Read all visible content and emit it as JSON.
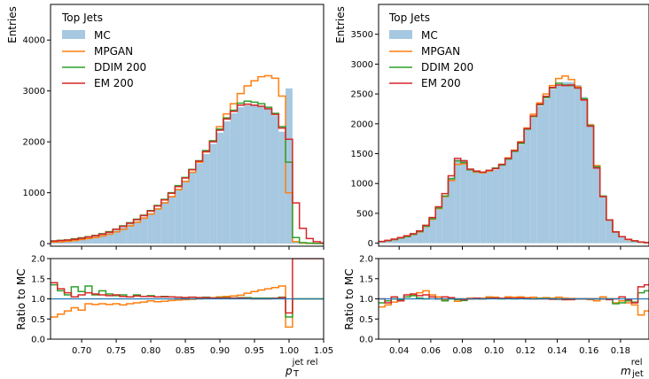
{
  "colors": {
    "mc": "#a6c8e0",
    "mpgan": "#ff7f0e",
    "ddim": "#2ca02c",
    "em": "#d62728",
    "ratio_line": "#1f77b4"
  },
  "chart_data": [
    {
      "type": "histogram",
      "legend_title": "Top Jets",
      "legend_position": "top-left",
      "legend": [
        "MC",
        "MPGAN",
        "DDIM 200",
        "EM 200"
      ],
      "ylabel": "Entries",
      "xlabel_main": "p",
      "xlabel_sub": "T",
      "xlabel_sup": "jet rel",
      "ratio_ylabel": "Ratio to MC",
      "xlim": [
        0.655,
        1.05
      ],
      "ylim": [
        -50,
        4700
      ],
      "ratio_ylim": [
        0.0,
        2.0
      ],
      "xticks": [
        "0.70",
        "0.75",
        "0.80",
        "0.85",
        "0.90",
        "0.95",
        "1.00",
        "1.05"
      ],
      "yticks": [
        "0",
        "1000",
        "2000",
        "3000",
        "4000"
      ],
      "ratio_yticks": [
        "0.0",
        "0.5",
        "1.0",
        "1.5",
        "2.0"
      ],
      "bin_edges": [
        0.655,
        0.665,
        0.675,
        0.685,
        0.695,
        0.705,
        0.715,
        0.725,
        0.735,
        0.745,
        0.755,
        0.765,
        0.775,
        0.785,
        0.795,
        0.805,
        0.815,
        0.825,
        0.835,
        0.845,
        0.855,
        0.865,
        0.875,
        0.885,
        0.895,
        0.905,
        0.915,
        0.925,
        0.935,
        0.945,
        0.955,
        0.965,
        0.975,
        0.985,
        0.995,
        1.005,
        1.015,
        1.025,
        1.035,
        1.045,
        1.05
      ],
      "series": [
        {
          "name": "MC",
          "values": [
            40,
            50,
            60,
            75,
            95,
            115,
            140,
            170,
            210,
            260,
            320,
            380,
            440,
            520,
            600,
            700,
            820,
            940,
            1080,
            1240,
            1400,
            1580,
            1760,
            1960,
            2180,
            2400,
            2560,
            2680,
            2720,
            2720,
            2700,
            2640,
            2520,
            2200,
            3050,
            40,
            10,
            5,
            5,
            5
          ]
        },
        {
          "name": "MPGAN",
          "values": [
            30,
            35,
            45,
            60,
            80,
            100,
            120,
            150,
            185,
            230,
            280,
            350,
            420,
            500,
            580,
            680,
            800,
            920,
            1060,
            1220,
            1400,
            1600,
            1800,
            2020,
            2300,
            2550,
            2750,
            2950,
            3100,
            3200,
            3280,
            3300,
            3250,
            2900,
            1000,
            40,
            10,
            5,
            5,
            5
          ]
        },
        {
          "name": "DDIM 200",
          "values": [
            55,
            65,
            75,
            95,
            115,
            135,
            160,
            195,
            235,
            285,
            350,
            410,
            480,
            560,
            650,
            750,
            870,
            1000,
            1140,
            1300,
            1460,
            1630,
            1830,
            2020,
            2250,
            2470,
            2620,
            2760,
            2800,
            2780,
            2750,
            2680,
            2560,
            2300,
            1600,
            120,
            20,
            10,
            5,
            5
          ]
        },
        {
          "name": "EM 200",
          "values": [
            50,
            60,
            70,
            85,
            105,
            130,
            155,
            185,
            225,
            280,
            340,
            400,
            470,
            550,
            640,
            740,
            860,
            990,
            1120,
            1290,
            1450,
            1620,
            1810,
            2000,
            2230,
            2450,
            2600,
            2720,
            2740,
            2720,
            2700,
            2650,
            2540,
            2270,
            2050,
            800,
            300,
            100,
            40,
            15
          ]
        }
      ],
      "ratio_series": [
        {
          "name": "MPGAN",
          "values": [
            0.55,
            0.62,
            0.7,
            0.78,
            0.72,
            0.88,
            0.86,
            0.88,
            0.86,
            0.88,
            0.85,
            0.88,
            0.9,
            0.92,
            0.95,
            0.93,
            0.94,
            0.96,
            0.97,
            0.98,
            0.99,
            1.0,
            1.02,
            1.03,
            1.05,
            1.06,
            1.07,
            1.09,
            1.14,
            1.18,
            1.22,
            1.25,
            1.28,
            1.32,
            0.3,
            1.0,
            1.0,
            1.0,
            1.0,
            1.0
          ]
        },
        {
          "name": "DDIM 200",
          "values": [
            1.35,
            1.2,
            1.1,
            1.3,
            1.18,
            1.32,
            1.1,
            1.2,
            1.12,
            1.08,
            1.1,
            1.05,
            1.1,
            1.06,
            1.08,
            1.05,
            1.06,
            1.05,
            1.04,
            1.03,
            1.04,
            1.03,
            1.04,
            1.02,
            1.03,
            1.03,
            1.02,
            1.03,
            1.03,
            1.02,
            1.02,
            1.02,
            1.02,
            1.04,
            0.55,
            1.0,
            1.0,
            1.0,
            1.0,
            1.0
          ]
        },
        {
          "name": "EM 200",
          "values": [
            1.4,
            1.25,
            1.15,
            1.05,
            1.1,
            1.15,
            1.12,
            1.1,
            1.08,
            1.1,
            1.06,
            1.05,
            1.07,
            1.06,
            1.06,
            1.05,
            1.05,
            1.05,
            1.04,
            1.03,
            1.04,
            1.03,
            1.03,
            1.02,
            1.02,
            1.02,
            1.02,
            1.02,
            1.01,
            1.0,
            1.0,
            1.0,
            1.01,
            1.03,
            0.65,
            2.0,
            2.0,
            2.0,
            2.0,
            2.0
          ]
        }
      ]
    },
    {
      "type": "histogram",
      "legend_title": "Top Jets",
      "legend_position": "top-left",
      "legend": [
        "MC",
        "MPGAN",
        "DDIM 200",
        "EM 200"
      ],
      "ylabel": "Entries",
      "xlabel_main": "m",
      "xlabel_sub": "jet",
      "xlabel_sup": "rel",
      "ratio_ylabel": "Ratio to MC",
      "xlim": [
        0.027,
        0.198
      ],
      "ylim": [
        -50,
        4000
      ],
      "ratio_ylim": [
        0.0,
        2.0
      ],
      "xticks": [
        "0.04",
        "0.06",
        "0.08",
        "0.10",
        "0.12",
        "0.14",
        "0.16",
        "0.18"
      ],
      "yticks": [
        "0",
        "500",
        "1000",
        "1500",
        "2000",
        "2500",
        "3000",
        "3500"
      ],
      "ratio_yticks": [
        "0.0",
        "0.5",
        "1.0",
        "1.5",
        "2.0"
      ],
      "bin_edges": [
        0.027,
        0.031,
        0.035,
        0.039,
        0.043,
        0.047,
        0.051,
        0.055,
        0.059,
        0.063,
        0.067,
        0.071,
        0.075,
        0.079,
        0.083,
        0.087,
        0.091,
        0.095,
        0.099,
        0.103,
        0.107,
        0.111,
        0.115,
        0.119,
        0.123,
        0.127,
        0.131,
        0.135,
        0.139,
        0.143,
        0.147,
        0.151,
        0.155,
        0.159,
        0.163,
        0.167,
        0.171,
        0.175,
        0.179,
        0.183,
        0.187,
        0.191,
        0.195,
        0.198
      ],
      "series": [
        {
          "name": "MC",
          "values": [
            30,
            45,
            65,
            90,
            115,
            150,
            200,
            290,
            420,
            600,
            800,
            1100,
            1400,
            1400,
            1240,
            1200,
            1180,
            1200,
            1230,
            1300,
            1400,
            1530,
            1650,
            1900,
            2100,
            2300,
            2420,
            2580,
            2650,
            2700,
            2700,
            2650,
            2450,
            2000,
            1300,
            800,
            400,
            200,
            120,
            70,
            40,
            20,
            10
          ]
        },
        {
          "name": "MPGAN",
          "values": [
            25,
            40,
            60,
            85,
            110,
            145,
            190,
            280,
            400,
            580,
            780,
            1050,
            1320,
            1330,
            1230,
            1190,
            1180,
            1210,
            1250,
            1320,
            1430,
            1560,
            1700,
            1930,
            2160,
            2350,
            2500,
            2640,
            2760,
            2800,
            2740,
            2620,
            2400,
            1980,
            1300,
            780,
            390,
            190,
            110,
            60,
            35,
            18,
            8
          ]
        },
        {
          "name": "DDIM 200",
          "values": [
            28,
            42,
            62,
            88,
            112,
            148,
            196,
            285,
            410,
            590,
            790,
            1080,
            1380,
            1350,
            1230,
            1200,
            1190,
            1220,
            1260,
            1310,
            1410,
            1540,
            1670,
            1910,
            2120,
            2320,
            2440,
            2600,
            2680,
            2650,
            2640,
            2600,
            2420,
            1970,
            1280,
            790,
            390,
            190,
            110,
            65,
            38,
            18,
            9
          ]
        },
        {
          "name": "EM 200",
          "values": [
            30,
            48,
            68,
            95,
            125,
            160,
            205,
            300,
            430,
            610,
            830,
            1130,
            1420,
            1380,
            1240,
            1210,
            1190,
            1220,
            1250,
            1320,
            1420,
            1550,
            1690,
            1920,
            2130,
            2330,
            2460,
            2610,
            2650,
            2640,
            2650,
            2600,
            2400,
            1960,
            1260,
            780,
            390,
            190,
            110,
            65,
            40,
            20,
            10
          ]
        }
      ],
      "ratio_series": [
        {
          "name": "MPGAN",
          "values": [
            0.8,
            0.85,
            0.92,
            0.95,
            1.05,
            1.1,
            1.15,
            1.2,
            1.1,
            1.05,
            0.98,
            1.02,
            0.94,
            1.0,
            1.02,
            1.0,
            1.02,
            1.05,
            1.04,
            1.02,
            1.05,
            1.04,
            1.05,
            1.03,
            1.04,
            1.02,
            1.03,
            1.02,
            1.04,
            1.02,
            1.01,
            1.0,
            1.0,
            0.98,
            0.95,
            1.05,
            1.0,
            0.9,
            0.95,
            0.9,
            0.85,
            0.6,
            0.7
          ]
        },
        {
          "name": "DDIM 200",
          "values": [
            0.9,
            0.95,
            1.0,
            0.98,
            1.05,
            1.08,
            1.02,
            1.0,
            1.05,
            1.0,
            0.95,
            1.0,
            0.98,
            0.96,
            1.0,
            1.0,
            1.0,
            1.02,
            1.01,
            1.0,
            1.01,
            1.0,
            1.01,
            1.0,
            1.0,
            1.01,
            1.01,
            1.0,
            0.99,
            0.98,
            0.99,
            1.0,
            1.0,
            1.0,
            1.0,
            1.0,
            1.0,
            0.88,
            0.9,
            0.95,
            0.92,
            1.15,
            1.2
          ]
        },
        {
          "name": "EM 200",
          "values": [
            1.0,
            0.9,
            1.05,
            0.95,
            1.1,
            1.12,
            1.08,
            1.1,
            1.05,
            1.0,
            1.05,
            1.03,
            1.0,
            0.98,
            1.0,
            1.02,
            1.0,
            1.01,
            1.02,
            1.01,
            1.02,
            1.01,
            1.02,
            1.01,
            1.0,
            1.0,
            1.0,
            0.99,
            1.0,
            0.98,
            0.98,
            1.0,
            1.0,
            1.0,
            1.0,
            1.0,
            0.98,
            1.0,
            1.05,
            0.98,
            0.9,
            1.3,
            1.35
          ]
        }
      ]
    }
  ]
}
